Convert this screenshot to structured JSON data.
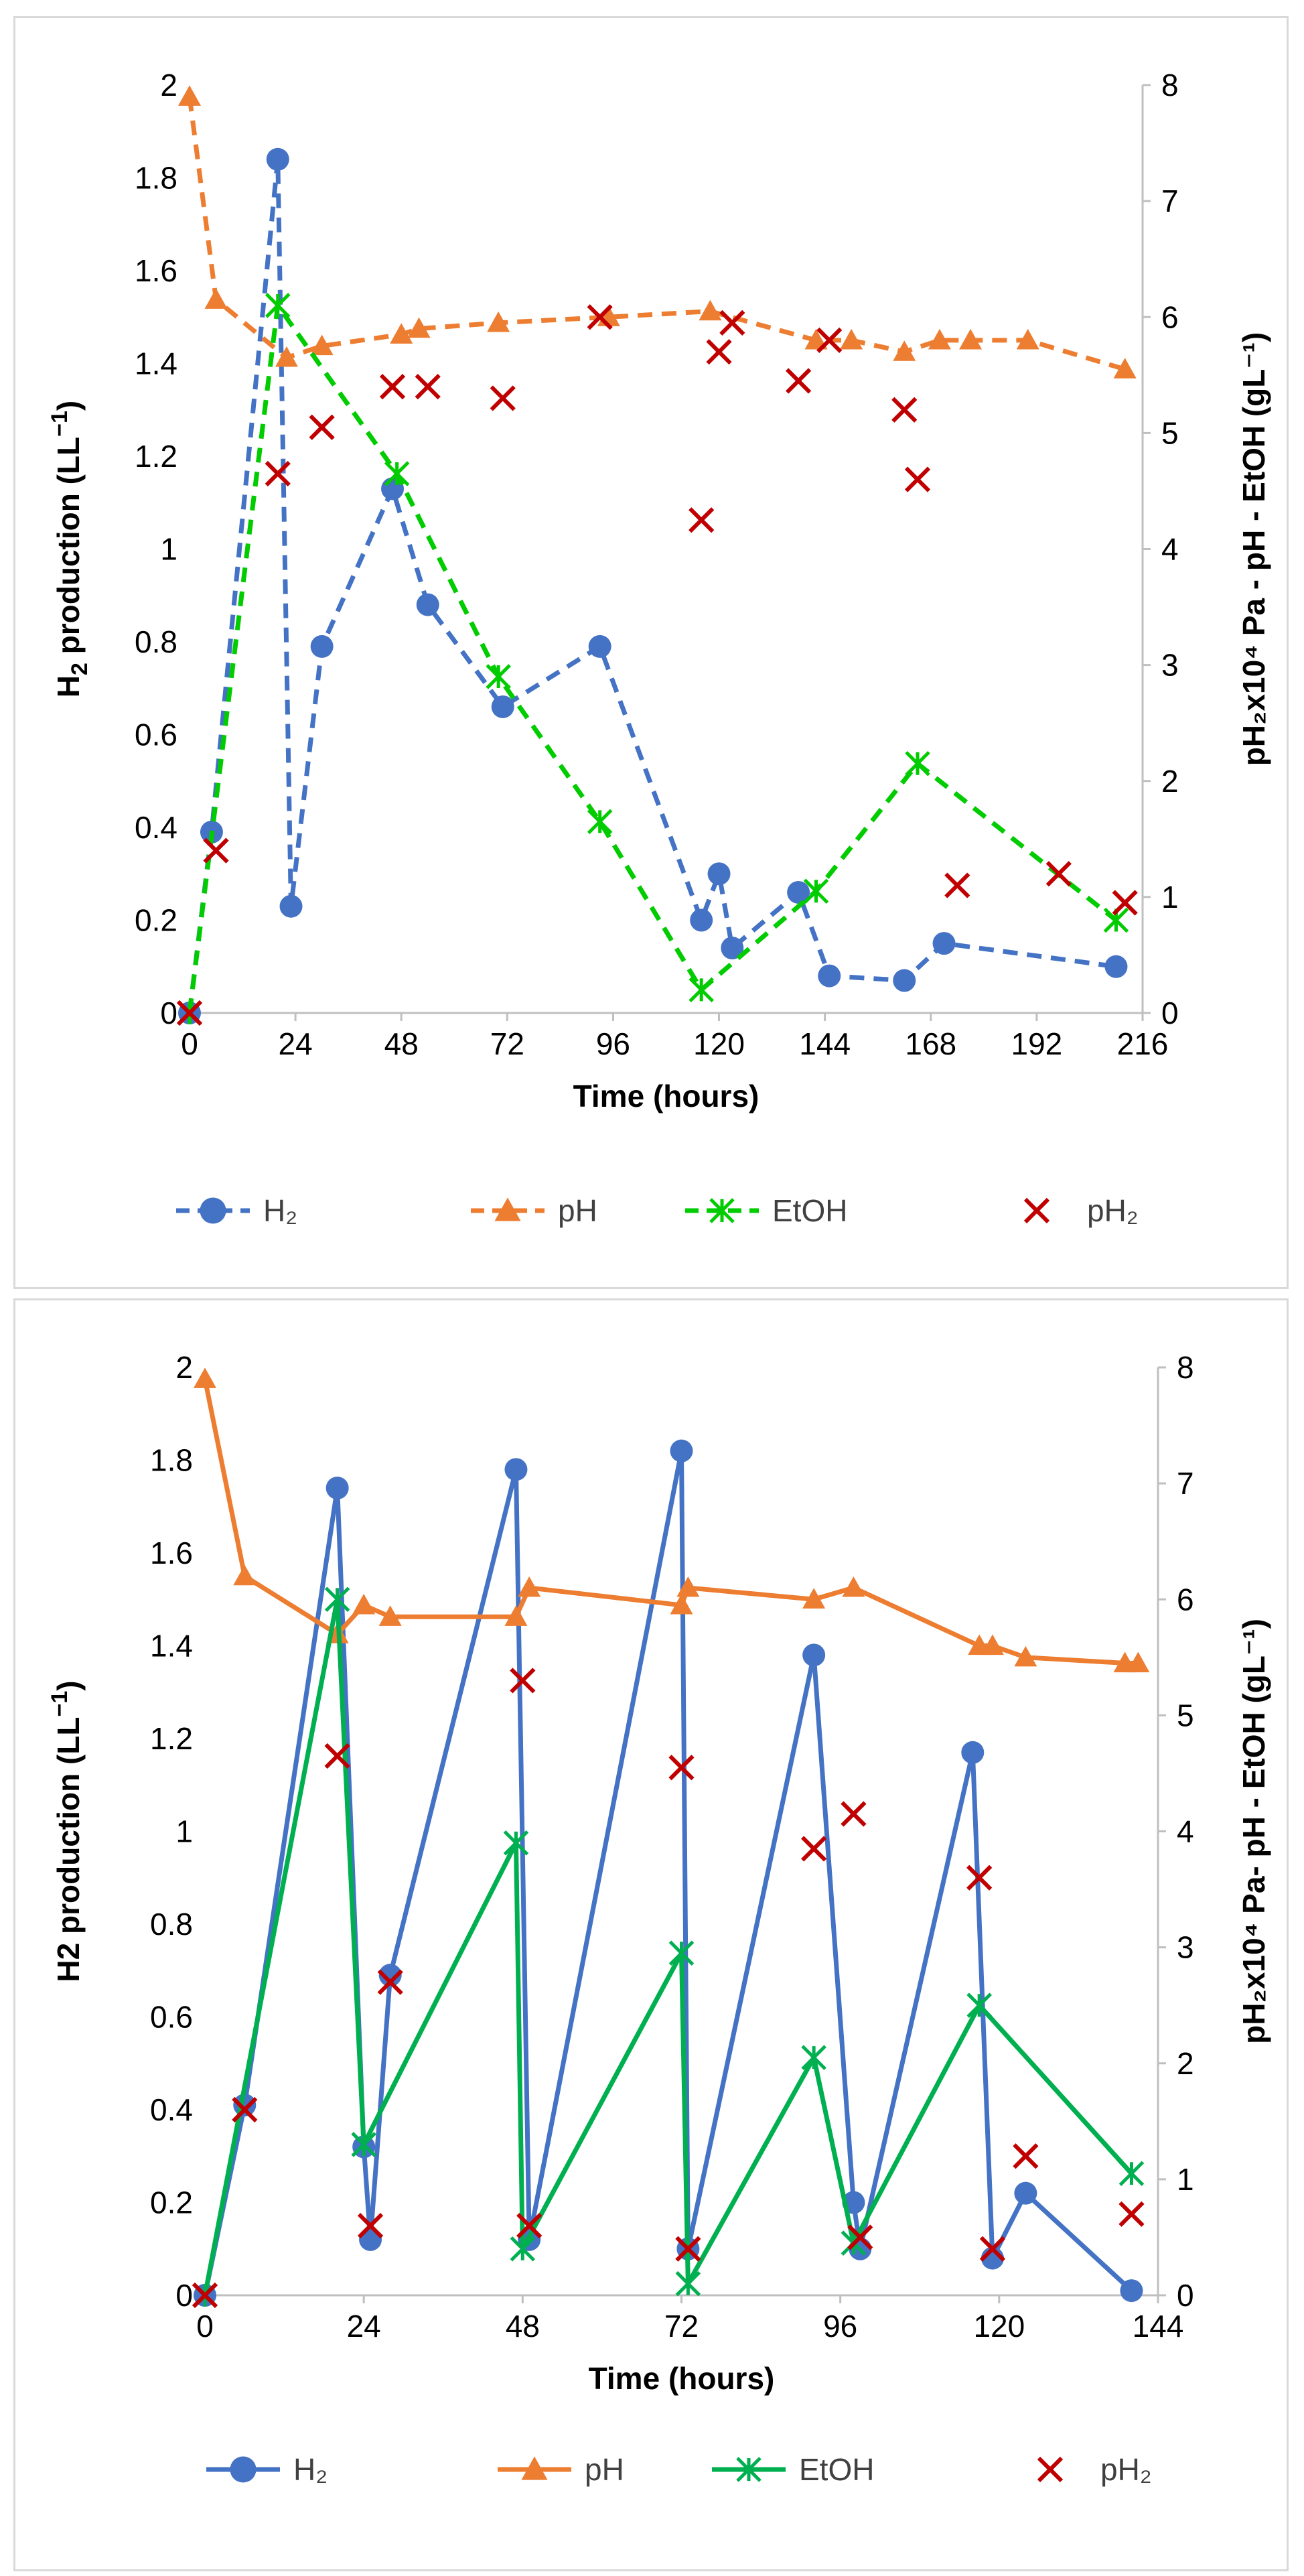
{
  "chart_data": [
    {
      "type": "line",
      "panel": "a",
      "line_style": "dashed",
      "xlabel": "Time (hours)",
      "ylabel_left": {
        "main": "H",
        "sub": "2",
        "rest": " production (LL",
        "sup": "−1",
        "end": ")"
      },
      "ylabel_right": "pH₂x10⁴ Pa - pH - EtOH (gL⁻¹)",
      "x_ticks": [
        "0",
        "24",
        "48",
        "72",
        "96",
        "120",
        "144",
        "168",
        "192",
        "216"
      ],
      "y_left_ticks": [
        "0",
        "0.2",
        "0.4",
        "0.6",
        "0.8",
        "1",
        "1.2",
        "1.4",
        "1.6",
        "1.8",
        "2"
      ],
      "y_right_ticks": [
        "0",
        "1",
        "2",
        "3",
        "4",
        "5",
        "6",
        "7",
        "8"
      ],
      "xlim": [
        0,
        216
      ],
      "ylim_left": [
        0,
        2
      ],
      "ylim_right": [
        0,
        8
      ],
      "series": [
        {
          "name": "H₂",
          "axis": "left",
          "marker": "circle",
          "color": "#4472C4",
          "x": [
            0,
            5,
            20,
            23,
            30,
            46,
            54,
            71,
            93,
            116,
            120,
            123,
            138,
            145,
            162,
            171,
            210
          ],
          "y": [
            0,
            0.39,
            1.84,
            0.23,
            0.79,
            1.13,
            0.88,
            0.66,
            0.79,
            0.2,
            0.3,
            0.14,
            0.26,
            0.08,
            0.07,
            0.15,
            0.1
          ]
        },
        {
          "name": "pH",
          "axis": "right",
          "marker": "triangle",
          "color": "#ED7D31",
          "x": [
            0,
            6,
            22,
            30,
            48,
            52,
            70,
            95,
            118,
            142,
            150,
            162,
            170,
            177,
            190,
            212
          ],
          "y": [
            7.9,
            6.15,
            5.65,
            5.75,
            5.85,
            5.9,
            5.95,
            6.0,
            6.05,
            5.8,
            5.8,
            5.7,
            5.8,
            5.8,
            5.8,
            5.55
          ]
        },
        {
          "name": "EtOH",
          "axis": "right",
          "marker": "asterisk",
          "color": "#00CC00",
          "x": [
            0,
            20,
            47,
            70,
            93,
            116,
            142,
            165,
            210
          ],
          "y": [
            0,
            6.1,
            4.65,
            2.9,
            1.65,
            0.2,
            1.05,
            2.15,
            0.8
          ]
        },
        {
          "name": "pH₂",
          "axis": "right",
          "marker": "x",
          "color": "#C00000",
          "no_line": true,
          "x": [
            0,
            6,
            20,
            30,
            46,
            54,
            71,
            93,
            116,
            120,
            123,
            138,
            145,
            162,
            165,
            174,
            197,
            212
          ],
          "y": [
            0,
            1.4,
            4.65,
            5.05,
            5.4,
            5.4,
            5.3,
            6.0,
            4.25,
            5.7,
            5.95,
            5.45,
            5.8,
            5.2,
            4.6,
            1.1,
            1.2,
            0.95
          ]
        }
      ]
    },
    {
      "type": "line",
      "panel": "b",
      "line_style": "solid",
      "xlabel": "Time (hours)",
      "ylabel_left": {
        "main": "H2 production (LL",
        "sub": "",
        "rest": "",
        "sup": "−1",
        "end": ")"
      },
      "ylabel_right": "pH₂x10⁴ Pa- pH - EtOH (gL⁻¹)",
      "x_ticks": [
        "0",
        "24",
        "48",
        "72",
        "96",
        "120",
        "144"
      ],
      "y_left_ticks": [
        "0",
        "0.2",
        "0.4",
        "0.6",
        "0.8",
        "1",
        "1.2",
        "1.4",
        "1.6",
        "1.8",
        "2"
      ],
      "y_right_ticks": [
        "0",
        "1",
        "2",
        "3",
        "4",
        "5",
        "6",
        "7",
        "8"
      ],
      "xlim": [
        0,
        144
      ],
      "ylim_left": [
        0,
        2
      ],
      "ylim_right": [
        0,
        8
      ],
      "series": [
        {
          "name": "H₂",
          "axis": "left",
          "marker": "circle",
          "color": "#4472C4",
          "x": [
            0,
            6,
            20,
            24,
            25,
            28,
            47,
            49,
            72,
            73,
            92,
            98,
            99,
            116,
            119,
            124,
            140
          ],
          "y": [
            0,
            0.41,
            1.74,
            0.32,
            0.12,
            0.69,
            1.78,
            0.12,
            1.82,
            0.1,
            1.38,
            0.2,
            0.1,
            1.17,
            0.08,
            0.22,
            0.01
          ]
        },
        {
          "name": "pH",
          "axis": "right",
          "marker": "triangle",
          "color": "#ED7D31",
          "x": [
            0,
            6,
            20,
            24,
            28,
            47,
            49,
            72,
            73,
            92,
            98,
            117,
            119,
            124,
            139,
            141
          ],
          "y": [
            7.9,
            6.2,
            5.7,
            5.95,
            5.85,
            5.85,
            6.1,
            5.95,
            6.1,
            6.0,
            6.1,
            5.6,
            5.6,
            5.5,
            5.45,
            5.45
          ]
        },
        {
          "name": "EtOH",
          "axis": "right",
          "marker": "asterisk",
          "color": "#00B050",
          "x": [
            0,
            20,
            24,
            47,
            48,
            72,
            73,
            92,
            98,
            117,
            140
          ],
          "y": [
            0,
            6.0,
            1.3,
            3.9,
            0.4,
            2.95,
            0.1,
            2.05,
            0.45,
            2.5,
            1.05
          ]
        },
        {
          "name": "pH₂",
          "axis": "right",
          "marker": "x",
          "color": "#C00000",
          "no_line": true,
          "x": [
            0,
            6,
            20,
            25,
            28,
            48,
            49,
            72,
            73,
            92,
            98,
            99,
            117,
            119,
            124,
            140
          ],
          "y": [
            0,
            1.6,
            4.65,
            0.6,
            2.7,
            5.3,
            0.6,
            4.55,
            0.4,
            3.85,
            4.15,
            0.5,
            3.6,
            0.4,
            1.2,
            0.7
          ]
        }
      ]
    }
  ]
}
